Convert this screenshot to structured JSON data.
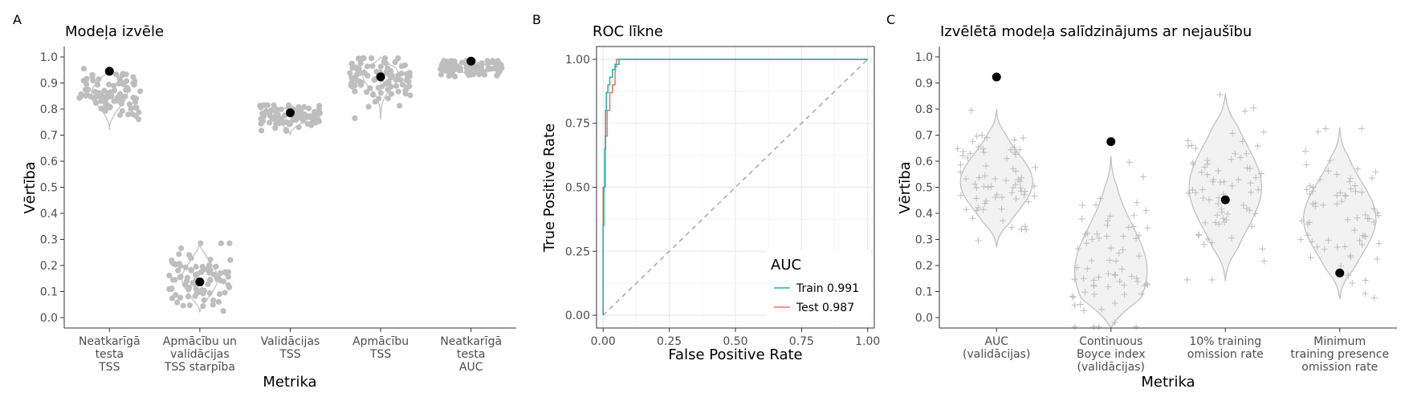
{
  "colors": {
    "point": "#bebebe",
    "violin_fill": "#f2f2f2",
    "violin_stroke": "#bebebe",
    "highlight": "#000000",
    "train": "#1ab4b4",
    "test": "#f07063",
    "grid": "#ebebeb",
    "diag": "#a8a8a8"
  },
  "chart_data": [
    {
      "type": "scatter",
      "tag": "A",
      "title": "Modeļa izvēle",
      "xlabel": "Metrika",
      "ylabel": "Vērtība",
      "ylim": [
        -0.04,
        1.04
      ],
      "yticks": [
        "0.0",
        "0.1",
        "0.2",
        "0.3",
        "0.4",
        "0.5",
        "0.6",
        "0.7",
        "0.8",
        "0.9",
        "1.0"
      ],
      "categories": [
        [
          "Neatkarīgā",
          "testa",
          "TSS"
        ],
        [
          "Apmācību un",
          "validācijas",
          "TSS starpība"
        ],
        [
          "Validācijas",
          "TSS"
        ],
        [
          "Apmācību",
          "TSS"
        ],
        [
          "Neatkarīgā",
          "testa",
          "AUC"
        ]
      ],
      "distributions": [
        {
          "min": 0.72,
          "max": 0.96,
          "center": 0.86,
          "spread": 0.05
        },
        {
          "min": 0.02,
          "max": 0.29,
          "center": 0.15,
          "spread": 0.06
        },
        {
          "min": 0.7,
          "max": 0.82,
          "center": 0.77,
          "spread": 0.025
        },
        {
          "min": 0.76,
          "max": 1.0,
          "center": 0.93,
          "spread": 0.05
        },
        {
          "min": 0.92,
          "max": 0.99,
          "center": 0.96,
          "spread": 0.015
        }
      ],
      "selected": [
        0.945,
        0.137,
        0.786,
        0.924,
        0.984
      ]
    },
    {
      "type": "line",
      "tag": "B",
      "title": "ROC līkne",
      "xlabel": "False Positive Rate",
      "ylabel": "True Positive Rate",
      "xlim": [
        -0.025,
        1.025
      ],
      "ylim": [
        -0.05,
        1.05
      ],
      "xticks": [
        "0.00",
        "0.25",
        "0.50",
        "0.75",
        "1.00"
      ],
      "yticks": [
        "0.00",
        "0.25",
        "0.50",
        "0.75",
        "1.00"
      ],
      "legend_title": "AUC",
      "legend_position": "bottom-right",
      "series": [
        {
          "name": "Train 0.991",
          "x": [
            0,
            0,
            0.003,
            0.003,
            0.006,
            0.006,
            0.009,
            0.009,
            0.012,
            0.012,
            0.018,
            0.018,
            0.025,
            0.025,
            0.035,
            0.035,
            0.045,
            0.045,
            0.06,
            0.06,
            1.0
          ],
          "y": [
            0,
            0.35,
            0.35,
            0.5,
            0.5,
            0.65,
            0.65,
            0.8,
            0.8,
            0.87,
            0.87,
            0.9,
            0.9,
            0.93,
            0.93,
            0.96,
            0.96,
            0.98,
            0.98,
            1.0,
            1.0
          ]
        },
        {
          "name": "Test 0.987",
          "x": [
            0,
            0,
            0.008,
            0.008,
            0.015,
            0.015,
            0.025,
            0.025,
            0.035,
            0.035,
            0.045,
            0.045,
            0.05,
            0.05,
            1.0
          ],
          "y": [
            0,
            0.5,
            0.5,
            0.7,
            0.7,
            0.8,
            0.8,
            0.87,
            0.87,
            0.9,
            0.9,
            0.97,
            0.97,
            1.0,
            1.0
          ]
        }
      ]
    },
    {
      "type": "scatter",
      "tag": "C",
      "title": "Izvēlētā modeļa salīdzinājums ar nejaušību",
      "xlabel": "Metrika",
      "ylabel": "Vērtība",
      "ylim": [
        -0.04,
        1.04
      ],
      "yticks": [
        "0.0",
        "0.1",
        "0.2",
        "0.3",
        "0.4",
        "0.5",
        "0.6",
        "0.7",
        "0.8",
        "0.9",
        "1.0"
      ],
      "categories": [
        [
          "AUC",
          "(validācijas)"
        ],
        [
          "Continuous",
          "Boyce index",
          "(validācijas)"
        ],
        [
          "10% training",
          "omission rate"
        ],
        [
          "Minimum",
          "training presence",
          "omission rate"
        ]
      ],
      "distributions": [
        {
          "min": 0.27,
          "max": 0.8,
          "center": 0.52,
          "spread": 0.11
        },
        {
          "min": -0.04,
          "max": 0.62,
          "center": 0.18,
          "spread": 0.17
        },
        {
          "min": 0.14,
          "max": 0.86,
          "center": 0.5,
          "spread": 0.16
        },
        {
          "min": 0.07,
          "max": 0.73,
          "center": 0.38,
          "spread": 0.14
        }
      ],
      "selected": [
        0.923,
        0.675,
        0.452,
        0.171
      ]
    }
  ]
}
